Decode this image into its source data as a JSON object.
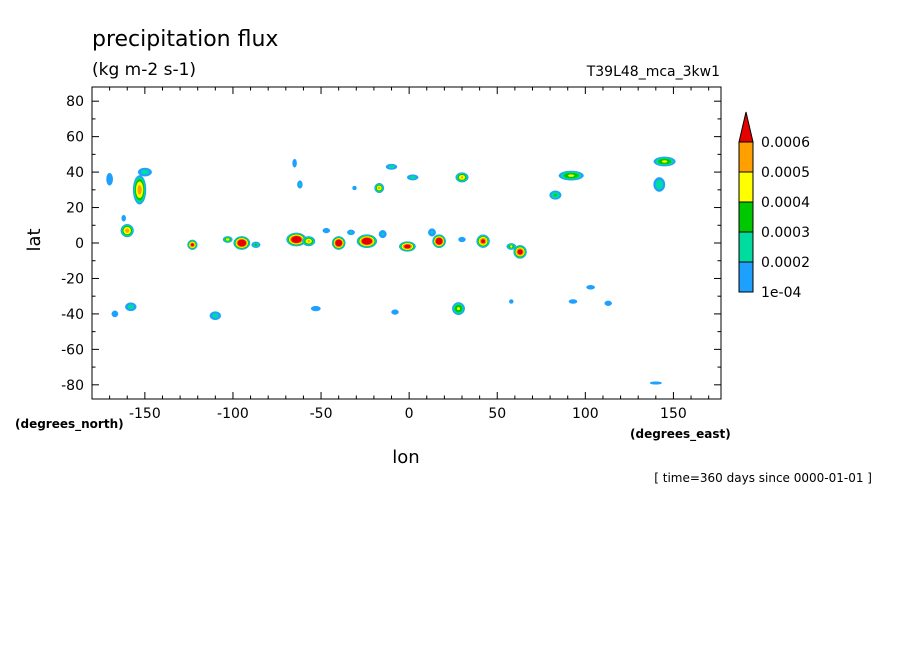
{
  "chart_data": {
    "type": "heatmap",
    "title": "precipitation flux",
    "subtitle": "(kg m-2 s-1)",
    "run_label": "T39L48_mca_3kw1",
    "xlabel": "lon",
    "ylabel": "lat",
    "x_unit_label": "(degrees_east)",
    "y_unit_label": "(degrees_north)",
    "time_note": "[ time=360 days since 0000-01-01 ]",
    "xlim": [
      -180,
      177
    ],
    "ylim": [
      -88,
      88
    ],
    "xticks": [
      -150,
      -100,
      -50,
      0,
      50,
      100,
      150
    ],
    "yticks": [
      -80,
      -60,
      -40,
      -20,
      0,
      20,
      40,
      60,
      80
    ],
    "xtick_labels": [
      "-150",
      "-100",
      "-50",
      "0",
      "50",
      "100",
      "150"
    ],
    "ytick_labels": [
      "-80",
      "-60",
      "-40",
      "-20",
      "0",
      "20",
      "40",
      "60",
      "80"
    ],
    "levels": [
      0.0001,
      0.0002,
      0.0003,
      0.0004,
      0.0005,
      0.0006
    ],
    "level_labels": [
      "1e-04",
      "0.0002",
      "0.0003",
      "0.0004",
      "0.0005",
      "0.0006"
    ],
    "level_colors": [
      "#1ea0ff",
      "#00dca0",
      "#00c800",
      "#ffff00",
      "#ffa000",
      "#e60000"
    ],
    "colorbar_location": "right",
    "features": [
      {
        "lon": -170,
        "lat": 36,
        "rx": 3,
        "ry": 6,
        "peak": 0.00015
      },
      {
        "lon": -153,
        "lat": 30,
        "rx": 4,
        "ry": 9,
        "peak": 0.00055
      },
      {
        "lon": -150,
        "lat": 40,
        "rx": 5,
        "ry": 3,
        "peak": 0.00025
      },
      {
        "lon": -160,
        "lat": 7,
        "rx": 4,
        "ry": 4,
        "peak": 0.00055
      },
      {
        "lon": -162,
        "lat": 14,
        "rx": 2,
        "ry": 3,
        "peak": 0.00015
      },
      {
        "lon": -123,
        "lat": -1,
        "rx": 3,
        "ry": 3,
        "peak": 0.00065
      },
      {
        "lon": -103,
        "lat": 2,
        "rx": 3,
        "ry": 2,
        "peak": 0.00045
      },
      {
        "lon": -95,
        "lat": 0,
        "rx": 5,
        "ry": 4,
        "peak": 0.0008
      },
      {
        "lon": -87,
        "lat": -1,
        "rx": 3,
        "ry": 2,
        "peak": 0.0003
      },
      {
        "lon": -64,
        "lat": 2,
        "rx": 6,
        "ry": 4,
        "peak": 0.0008
      },
      {
        "lon": -57,
        "lat": 1,
        "rx": 4,
        "ry": 3,
        "peak": 0.0005
      },
      {
        "lon": -40,
        "lat": 0,
        "rx": 4,
        "ry": 4,
        "peak": 0.0008
      },
      {
        "lon": -33,
        "lat": 6,
        "rx": 3,
        "ry": 2,
        "peak": 0.0002
      },
      {
        "lon": -47,
        "lat": 7,
        "rx": 3,
        "ry": 2,
        "peak": 0.00018
      },
      {
        "lon": -24,
        "lat": 1,
        "rx": 6,
        "ry": 4,
        "peak": 0.0008
      },
      {
        "lon": -15,
        "lat": 5,
        "rx": 3,
        "ry": 3,
        "peak": 0.0002
      },
      {
        "lon": -1,
        "lat": -2,
        "rx": 5,
        "ry": 3,
        "peak": 0.0007
      },
      {
        "lon": 17,
        "lat": 1,
        "rx": 4,
        "ry": 4,
        "peak": 0.0008
      },
      {
        "lon": 13,
        "lat": 6,
        "rx": 3,
        "ry": 3,
        "peak": 0.0002
      },
      {
        "lon": 30,
        "lat": 2,
        "rx": 3,
        "ry": 2,
        "peak": 0.00018
      },
      {
        "lon": 42,
        "lat": 1,
        "rx": 4,
        "ry": 4,
        "peak": 0.00065
      },
      {
        "lon": 63,
        "lat": -5,
        "rx": 4,
        "ry": 4,
        "peak": 0.0007
      },
      {
        "lon": 58,
        "lat": -2,
        "rx": 3,
        "ry": 2,
        "peak": 0.0004
      },
      {
        "lon": -65,
        "lat": 45,
        "rx": 2,
        "ry": 4,
        "peak": 0.00015
      },
      {
        "lon": -62,
        "lat": 33,
        "rx": 2,
        "ry": 3,
        "peak": 0.0002
      },
      {
        "lon": -17,
        "lat": 31,
        "rx": 3,
        "ry": 3,
        "peak": 0.0005
      },
      {
        "lon": -10,
        "lat": 43,
        "rx": 4,
        "ry": 2,
        "peak": 0.00025
      },
      {
        "lon": 2,
        "lat": 37,
        "rx": 4,
        "ry": 2,
        "peak": 0.00025
      },
      {
        "lon": 30,
        "lat": 37,
        "rx": 4,
        "ry": 3,
        "peak": 0.0005
      },
      {
        "lon": -31,
        "lat": 31,
        "rx": 2,
        "ry": 2,
        "peak": 0.00015
      },
      {
        "lon": 92,
        "lat": 38,
        "rx": 8,
        "ry": 3,
        "peak": 0.00042
      },
      {
        "lon": 83,
        "lat": 27,
        "rx": 4,
        "ry": 3,
        "peak": 0.0003
      },
      {
        "lon": 145,
        "lat": 46,
        "rx": 7,
        "ry": 3,
        "peak": 0.00042
      },
      {
        "lon": 142,
        "lat": 33,
        "rx": 4,
        "ry": 5,
        "peak": 0.00028
      },
      {
        "lon": -167,
        "lat": -40,
        "rx": 3,
        "ry": 3,
        "peak": 0.00015
      },
      {
        "lon": -158,
        "lat": -36,
        "rx": 4,
        "ry": 3,
        "peak": 0.00025
      },
      {
        "lon": -110,
        "lat": -41,
        "rx": 4,
        "ry": 3,
        "peak": 0.00025
      },
      {
        "lon": -53,
        "lat": -37,
        "rx": 4,
        "ry": 2,
        "peak": 0.00018
      },
      {
        "lon": -8,
        "lat": -39,
        "rx": 3,
        "ry": 2,
        "peak": 0.00018
      },
      {
        "lon": 28,
        "lat": -37,
        "rx": 4,
        "ry": 4,
        "peak": 0.00042
      },
      {
        "lon": 58,
        "lat": -33,
        "rx": 2,
        "ry": 2,
        "peak": 0.00015
      },
      {
        "lon": 103,
        "lat": -25,
        "rx": 4,
        "ry": 2,
        "peak": 0.00015
      },
      {
        "lon": 113,
        "lat": -34,
        "rx": 3,
        "ry": 2,
        "peak": 0.00018
      },
      {
        "lon": 93,
        "lat": -33,
        "rx": 4,
        "ry": 2,
        "peak": 0.00015
      },
      {
        "lon": 140,
        "lat": -79,
        "rx": 7,
        "ry": 1.5,
        "peak": 0.00013
      }
    ]
  }
}
